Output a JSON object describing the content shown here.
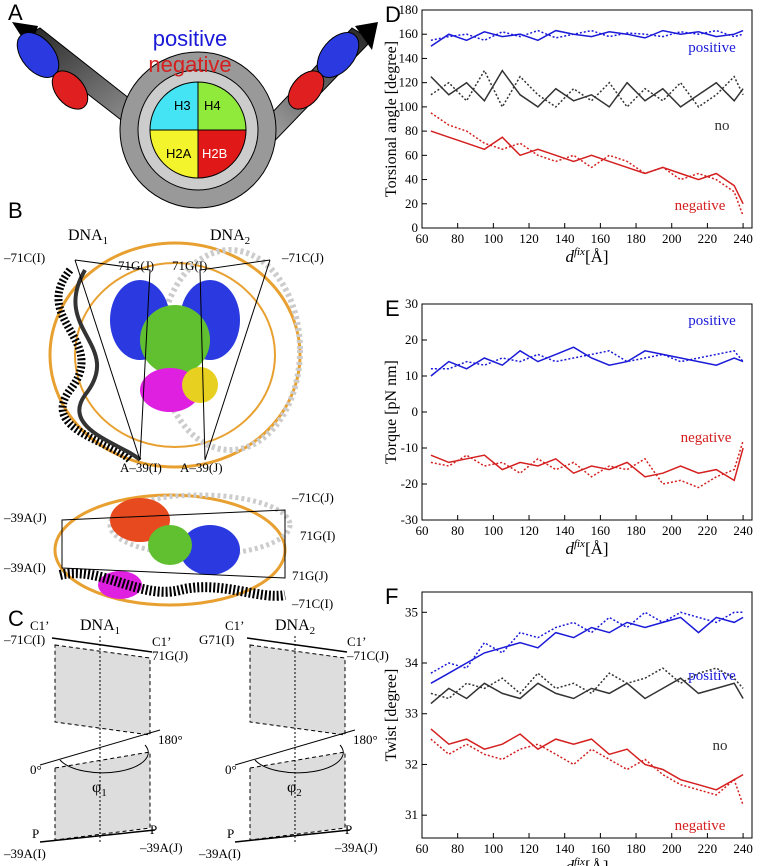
{
  "diagrams": {
    "panel_a": {
      "label": "A",
      "positive": "positive",
      "negative": "negative",
      "histones": [
        "H3",
        "H4",
        "H2A",
        "H2B"
      ]
    },
    "panel_b": {
      "label": "B",
      "dna1": [
        "DNA",
        "1"
      ],
      "dna2": [
        "DNA",
        "2"
      ],
      "top_labels": [
        "–71C(I)",
        "71G(J)",
        "71G(I)",
        "–71C(J)",
        "A–39(I)",
        "A–39(J)"
      ],
      "side_labels": [
        "–39A(J)",
        "–71C(J)",
        "71G(I)",
        "–39A(I)",
        "71G(J)",
        "–71C(I)"
      ]
    },
    "panel_c": {
      "label": "C",
      "left": {
        "title": [
          "DNA",
          "1"
        ],
        "top_left": [
          "C1’",
          "–71C(I)"
        ],
        "top_right": [
          "C1’",
          "71G(J)"
        ],
        "angle_high": "180°",
        "angle_low": "0°",
        "phi": [
          "φ",
          "1"
        ],
        "bottom_left": [
          "P",
          "–39A(I)"
        ],
        "bottom_right": [
          "P",
          "–39A(J)"
        ]
      },
      "right": {
        "title": [
          "DNA",
          "2"
        ],
        "top_left": [
          "C1’",
          "G71(I)"
        ],
        "top_right": [
          "C1’",
          "–71C(J)"
        ],
        "angle_high": "180°",
        "angle_low": "0°",
        "phi": [
          "φ",
          "2"
        ],
        "bottom_left": [
          "P",
          "–39A(I)"
        ],
        "bottom_right": [
          "P",
          "–39A(J)"
        ]
      }
    }
  },
  "chart_data": [
    {
      "type": "line",
      "label": "D",
      "ylabel": "Torsional angle [degree]",
      "xlabel": [
        "d",
        "fix",
        "[Å]"
      ],
      "x": [
        65,
        75,
        85,
        95,
        105,
        115,
        125,
        135,
        145,
        155,
        165,
        175,
        185,
        195,
        205,
        215,
        225,
        235,
        240
      ],
      "xlim": [
        60,
        245
      ],
      "xticks": [
        60,
        80,
        100,
        120,
        140,
        160,
        180,
        200,
        220,
        240
      ],
      "ylim": [
        0,
        180
      ],
      "yticks": [
        0,
        20,
        40,
        60,
        80,
        100,
        120,
        140,
        160,
        180
      ],
      "series": [
        {
          "name": "positive",
          "color": "#1a1ad8",
          "values": [
            150,
            160,
            155,
            162,
            158,
            160,
            155,
            163,
            160,
            158,
            162,
            160,
            157,
            163,
            160,
            162,
            158,
            160,
            163
          ],
          "dashed_values": [
            155,
            158,
            160,
            155,
            162,
            158,
            163,
            157,
            160,
            163,
            158,
            161,
            160,
            158,
            162,
            160,
            163,
            158,
            160
          ]
        },
        {
          "name": "no",
          "color": "#333333",
          "values": [
            125,
            110,
            120,
            105,
            130,
            110,
            100,
            115,
            105,
            110,
            100,
            120,
            105,
            115,
            100,
            110,
            120,
            105,
            115
          ],
          "dashed_values": [
            110,
            120,
            105,
            130,
            100,
            125,
            110,
            100,
            115,
            105,
            120,
            100,
            115,
            105,
            120,
            100,
            110,
            125,
            110
          ]
        },
        {
          "name": "negative",
          "color": "#d42020",
          "values": [
            80,
            75,
            70,
            65,
            75,
            60,
            65,
            60,
            55,
            60,
            55,
            50,
            45,
            50,
            45,
            40,
            45,
            35,
            20
          ],
          "dashed_values": [
            95,
            85,
            80,
            70,
            65,
            70,
            60,
            55,
            60,
            50,
            60,
            55,
            45,
            50,
            40,
            45,
            40,
            30,
            10
          ]
        }
      ]
    },
    {
      "type": "line",
      "label": "E",
      "ylabel": "Torque [pN nm]",
      "xlabel": [
        "d",
        "fix",
        "[Å]"
      ],
      "x": [
        65,
        75,
        85,
        95,
        105,
        115,
        125,
        135,
        145,
        155,
        165,
        175,
        185,
        195,
        205,
        215,
        225,
        235,
        240
      ],
      "xlim": [
        60,
        245
      ],
      "xticks": [
        60,
        80,
        100,
        120,
        140,
        160,
        180,
        200,
        220,
        240
      ],
      "ylim": [
        -30,
        30
      ],
      "yticks": [
        -30,
        -20,
        -10,
        0,
        10,
        20,
        30
      ],
      "series": [
        {
          "name": "positive",
          "color": "#1a1ad8",
          "values": [
            10,
            14,
            12,
            15,
            13,
            17,
            14,
            16,
            18,
            15,
            13,
            14,
            17,
            16,
            15,
            14,
            13,
            15,
            14
          ],
          "dashed_values": [
            12,
            12,
            14,
            13,
            15,
            14,
            16,
            14,
            15,
            16,
            17,
            14,
            15,
            16,
            14,
            15,
            16,
            17,
            14
          ]
        },
        {
          "name": "negative",
          "color": "#d42020",
          "values": [
            -12,
            -14,
            -13,
            -12,
            -16,
            -14,
            -15,
            -13,
            -17,
            -15,
            -16,
            -14,
            -18,
            -17,
            -15,
            -17,
            -16,
            -19,
            -10
          ],
          "dashed_values": [
            -14,
            -15,
            -12,
            -15,
            -14,
            -17,
            -13,
            -16,
            -14,
            -18,
            -15,
            -16,
            -13,
            -20,
            -19,
            -21,
            -18,
            -16,
            -8
          ]
        }
      ]
    },
    {
      "type": "line",
      "label": "F",
      "ylabel": "Twist [degree]",
      "xlabel": [
        "d",
        "fix",
        "[Å]"
      ],
      "x": [
        65,
        75,
        85,
        95,
        105,
        115,
        125,
        135,
        145,
        155,
        165,
        175,
        185,
        195,
        205,
        215,
        225,
        235,
        240
      ],
      "xlim": [
        60,
        245
      ],
      "xticks": [
        60,
        80,
        100,
        120,
        140,
        160,
        180,
        200,
        220,
        240
      ],
      "ylim": [
        30.55,
        35.4
      ],
      "yticks": [
        31,
        32,
        33,
        34,
        35
      ],
      "series": [
        {
          "name": "positive",
          "color": "#1a1ad8",
          "values": [
            33.6,
            33.8,
            34.0,
            34.2,
            34.3,
            34.4,
            34.3,
            34.6,
            34.5,
            34.7,
            34.6,
            34.8,
            34.7,
            34.8,
            34.9,
            34.6,
            34.9,
            34.8,
            34.9
          ],
          "dashed_values": [
            33.8,
            34.0,
            33.9,
            34.4,
            34.2,
            34.6,
            34.5,
            34.7,
            34.8,
            34.6,
            34.9,
            34.7,
            35.0,
            34.8,
            35.0,
            34.9,
            34.8,
            35.0,
            35.0
          ]
        },
        {
          "name": "no",
          "color": "#333333",
          "values": [
            33.2,
            33.5,
            33.3,
            33.6,
            33.4,
            33.3,
            33.6,
            33.4,
            33.3,
            33.5,
            33.4,
            33.6,
            33.3,
            33.5,
            33.7,
            33.4,
            33.5,
            33.6,
            33.3
          ],
          "dashed_values": [
            33.4,
            33.3,
            33.6,
            33.5,
            33.7,
            33.4,
            33.8,
            33.5,
            33.6,
            33.4,
            33.8,
            33.6,
            33.7,
            33.9,
            33.6,
            33.8,
            33.9,
            33.7,
            33.5
          ]
        },
        {
          "name": "negative",
          "color": "#d42020",
          "values": [
            32.7,
            32.4,
            32.5,
            32.3,
            32.4,
            32.6,
            32.3,
            32.5,
            32.4,
            32.5,
            32.2,
            32.3,
            32.0,
            31.9,
            31.7,
            31.6,
            31.5,
            31.7,
            31.8
          ],
          "dashed_values": [
            32.5,
            32.2,
            32.4,
            32.2,
            32.1,
            32.3,
            32.4,
            32.2,
            32.0,
            32.3,
            32.1,
            31.9,
            32.1,
            31.8,
            31.6,
            31.5,
            31.4,
            31.7,
            31.2
          ]
        }
      ]
    }
  ]
}
